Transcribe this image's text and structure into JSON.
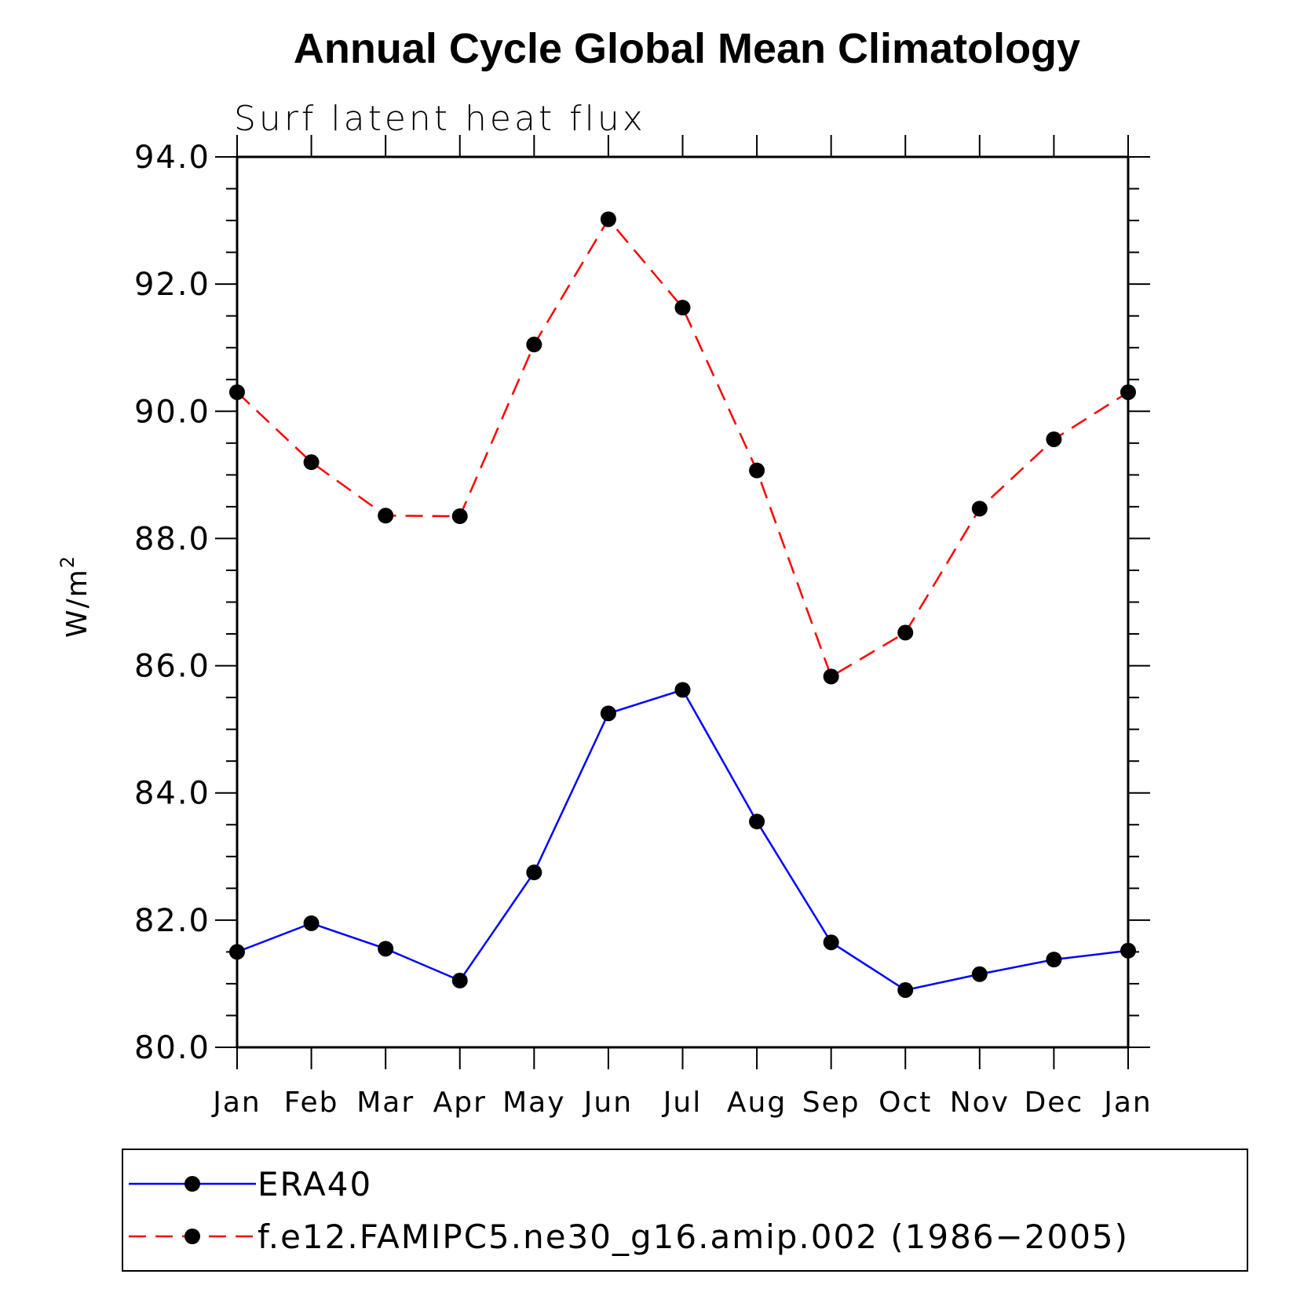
{
  "chart_data": {
    "type": "line",
    "title": "Annual Cycle Global Mean Climatology",
    "subtitle": "Surf latent heat flux",
    "ylabel": "W/m",
    "ylabel_superscript": "2",
    "xlabel": "",
    "ylim": [
      80.0,
      94.0
    ],
    "yticks": [
      "80.0",
      "82.0",
      "84.0",
      "86.0",
      "88.0",
      "90.0",
      "92.0",
      "94.0"
    ],
    "categories": [
      "Jan",
      "Feb",
      "Mar",
      "Apr",
      "May",
      "Jun",
      "Jul",
      "Aug",
      "Sep",
      "Oct",
      "Nov",
      "Dec",
      "Jan"
    ],
    "series": [
      {
        "name": "ERA40",
        "color": "#0000ff",
        "line_style": "solid",
        "marker": "filled-circle",
        "values": [
          81.5,
          81.95,
          81.55,
          81.05,
          82.75,
          85.25,
          85.62,
          83.55,
          81.65,
          80.9,
          81.15,
          81.38,
          81.52
        ]
      },
      {
        "name": "f.e12.FAMIPC5.ne30_g16.amip.002 (1986−2005)",
        "color": "#ff0000",
        "line_style": "dashed",
        "marker": "filled-circle",
        "values": [
          90.3,
          89.2,
          88.36,
          88.35,
          91.05,
          93.02,
          91.63,
          89.07,
          85.83,
          86.52,
          88.47,
          89.56,
          90.3
        ]
      }
    ],
    "legend_position": "bottom",
    "grid": false
  }
}
